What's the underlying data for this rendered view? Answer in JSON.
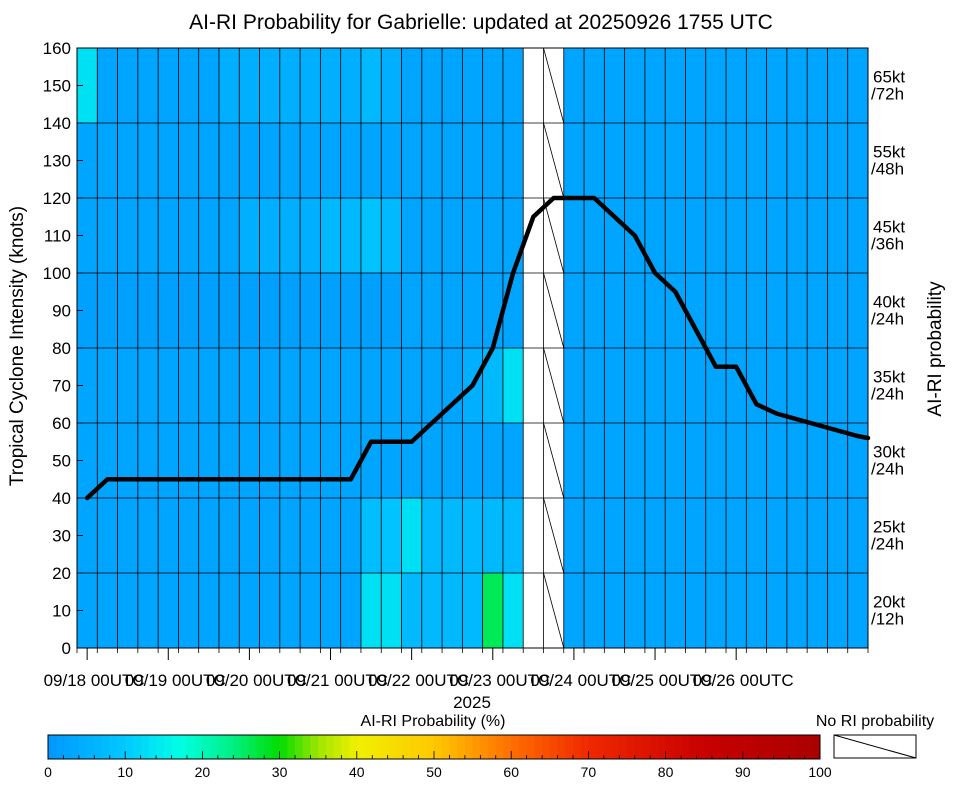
{
  "chart_data": {
    "type": "heatmap",
    "title": "AI-RI Probability for Gabrielle: updated at 20250926 1755 UTC",
    "ylabel": "Tropical Cyclone Intensity (knots)",
    "right_label": "AI-RI probability",
    "xlabel": "2025",
    "ylim": [
      0,
      160
    ],
    "yticks": [
      0,
      10,
      20,
      30,
      40,
      50,
      60,
      70,
      80,
      90,
      100,
      110,
      120,
      130,
      140,
      150,
      160
    ],
    "x_tick_labels": [
      "09/18 00UTC",
      "09/19 00UTC",
      "09/20 00UTC",
      "09/21 00UTC",
      "09/22 00UTC",
      "09/23 00UTC",
      "09/24 00UTC",
      "09/25 00UTC",
      "09/26 00UTC"
    ],
    "x_tick_times": [
      0.5,
      4.5,
      8.5,
      12.5,
      16.5,
      20.5,
      24.5,
      28.5,
      32.5
    ],
    "n_time_steps": 39,
    "no_data_columns": [
      22,
      23
    ],
    "threshold_bands": [
      {
        "label": "20kt",
        "window": "/12h",
        "ymin": 0,
        "ymax": 20
      },
      {
        "label": "25kt",
        "window": "/24h",
        "ymin": 20,
        "ymax": 40
      },
      {
        "label": "30kt",
        "window": "/24h",
        "ymin": 40,
        "ymax": 60
      },
      {
        "label": "35kt",
        "window": "/24h",
        "ymin": 60,
        "ymax": 80
      },
      {
        "label": "40kt",
        "window": "/24h",
        "ymin": 80,
        "ymax": 100
      },
      {
        "label": "45kt",
        "window": "/36h",
        "ymin": 100,
        "ymax": 120
      },
      {
        "label": "55kt",
        "window": "/48h",
        "ymin": 120,
        "ymax": 140
      },
      {
        "label": "65kt",
        "window": "/72h",
        "ymin": 140,
        "ymax": 160
      }
    ],
    "probability_grid_percent": [
      [
        3,
        3,
        3,
        3,
        3,
        3,
        3,
        3,
        3,
        3,
        3,
        3,
        3,
        3,
        13,
        13,
        7,
        7,
        7,
        7,
        26,
        13,
        null,
        null,
        3,
        3,
        3,
        3,
        3,
        3,
        3,
        3,
        3,
        3,
        3,
        3,
        3,
        3,
        3
      ],
      [
        3,
        3,
        3,
        3,
        3,
        3,
        3,
        3,
        3,
        3,
        3,
        3,
        3,
        3,
        8,
        9,
        13,
        7,
        7,
        7,
        7,
        7,
        null,
        null,
        3,
        3,
        3,
        3,
        3,
        3,
        3,
        3,
        3,
        3,
        3,
        3,
        3,
        3,
        3
      ],
      [
        3,
        3,
        3,
        3,
        3,
        3,
        3,
        3,
        3,
        3,
        3,
        3,
        3,
        3,
        3,
        3,
        3,
        3,
        3,
        3,
        3,
        3,
        null,
        null,
        3,
        3,
        3,
        3,
        3,
        3,
        3,
        3,
        3,
        3,
        3,
        3,
        3,
        3,
        3
      ],
      [
        3,
        3,
        3,
        3,
        3,
        3,
        3,
        3,
        3,
        3,
        3,
        3,
        3,
        3,
        3,
        3,
        3,
        3,
        3,
        5,
        7,
        13,
        null,
        null,
        3,
        3,
        3,
        3,
        3,
        3,
        3,
        3,
        3,
        3,
        3,
        3,
        3,
        3,
        3
      ],
      [
        2,
        2,
        2,
        2,
        2,
        2,
        2,
        2,
        2,
        2,
        2,
        2,
        2,
        2,
        2,
        2,
        3,
        3,
        3,
        3,
        3,
        3,
        null,
        null,
        3,
        3,
        3,
        3,
        3,
        3,
        3,
        3,
        3,
        3,
        3,
        3,
        3,
        3,
        3
      ],
      [
        3,
        3,
        3,
        3,
        3,
        3,
        3,
        3,
        5,
        5,
        5,
        5,
        7,
        7,
        9,
        7,
        3,
        3,
        3,
        3,
        3,
        3,
        null,
        null,
        3,
        3,
        3,
        3,
        3,
        3,
        3,
        3,
        3,
        3,
        3,
        3,
        3,
        3,
        3
      ],
      [
        3,
        3,
        3,
        3,
        3,
        3,
        3,
        3,
        3,
        3,
        3,
        3,
        3,
        3,
        3,
        3,
        3,
        3,
        3,
        3,
        3,
        3,
        null,
        null,
        3,
        3,
        3,
        3,
        3,
        3,
        3,
        3,
        3,
        3,
        3,
        3,
        3,
        3,
        3
      ],
      [
        13,
        3,
        3,
        3,
        3,
        3,
        3,
        5,
        5,
        5,
        5,
        5,
        5,
        5,
        7,
        5,
        3,
        3,
        3,
        3,
        3,
        3,
        null,
        null,
        3,
        3,
        3,
        3,
        3,
        3,
        3,
        3,
        3,
        3,
        3,
        3,
        3,
        3,
        3
      ]
    ],
    "intensity_series": {
      "t": [
        0,
        1,
        2,
        3,
        4,
        5,
        6,
        7,
        8,
        9,
        10,
        11,
        12,
        13,
        14,
        15,
        16,
        17,
        18,
        19,
        20,
        21,
        22,
        23,
        24,
        25,
        26,
        27,
        28,
        29,
        30,
        31,
        32,
        33,
        34,
        35,
        36,
        37,
        38,
        38.5
      ],
      "knots": [
        40,
        45,
        45,
        45,
        45,
        45,
        45,
        45,
        45,
        45,
        45,
        45,
        45,
        45,
        55,
        55,
        55,
        60,
        65,
        70,
        80,
        100,
        115,
        120,
        120,
        120,
        115,
        110,
        100,
        95,
        85,
        75,
        75,
        65,
        62.5,
        61,
        59.5,
        58,
        56.5,
        56
      ]
    },
    "colorbar": {
      "title": "AI-RI Probability (%)",
      "min": 0,
      "max": 100,
      "ticks": [
        0,
        10,
        20,
        30,
        40,
        50,
        60,
        70,
        80,
        90,
        100
      ],
      "no_ri_label": "No RI probability"
    }
  }
}
